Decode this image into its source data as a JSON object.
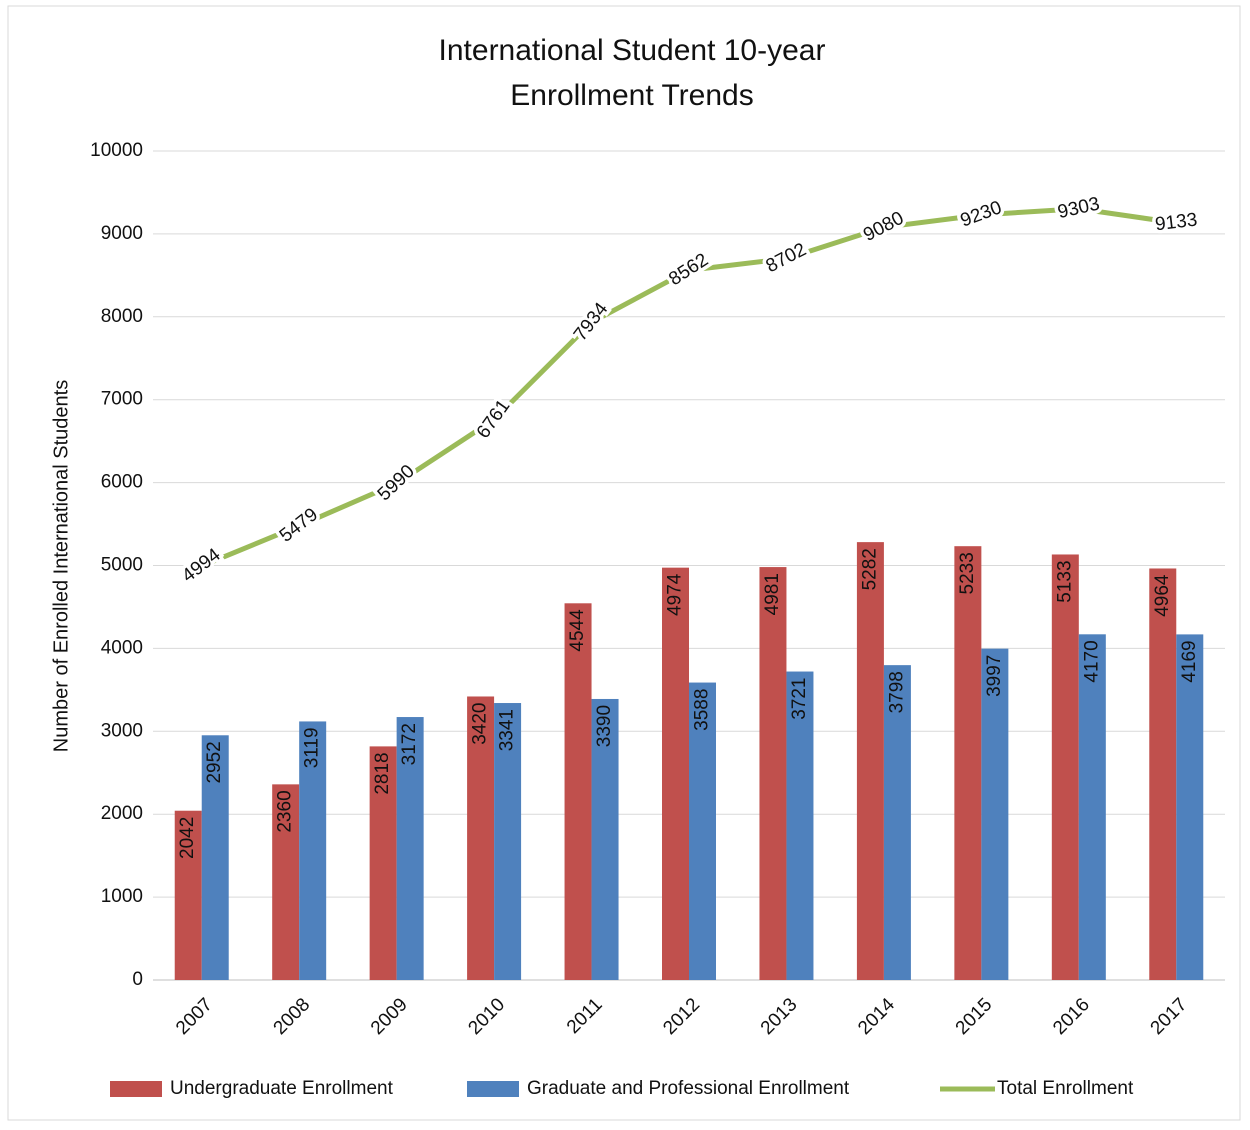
{
  "chart_data": {
    "type": "combo",
    "title": [
      "International Student 10-year",
      "Enrollment Trends"
    ],
    "y_label": "Number of Enrolled International Students",
    "categories": [
      "2007",
      "2008",
      "2009",
      "2010",
      "2011",
      "2012",
      "2013",
      "2014",
      "2015",
      "2016",
      "2017"
    ],
    "series": [
      {
        "name": "Undergraduate Enrollment",
        "type": "bar",
        "color": "#c0504d",
        "values": [
          2042,
          2360,
          2818,
          3420,
          4544,
          4974,
          4981,
          5282,
          5233,
          5133,
          4964
        ]
      },
      {
        "name": "Graduate and Professional Enrollment",
        "type": "bar",
        "color": "#4f81bd",
        "values": [
          2952,
          3119,
          3172,
          3341,
          3390,
          3588,
          3721,
          3798,
          3997,
          4170,
          4169
        ]
      },
      {
        "name": "Total Enrollment",
        "type": "line",
        "color": "#9bbb59",
        "values": [
          4994,
          5479,
          5990,
          6761,
          7934,
          8562,
          8702,
          9080,
          9230,
          9303,
          9133
        ]
      }
    ],
    "ylim": [
      0,
      10000
    ],
    "yticks": [
      0,
      1000,
      2000,
      3000,
      4000,
      5000,
      6000,
      7000,
      8000,
      9000,
      10000
    ],
    "grid": true,
    "legend": "bottom"
  }
}
